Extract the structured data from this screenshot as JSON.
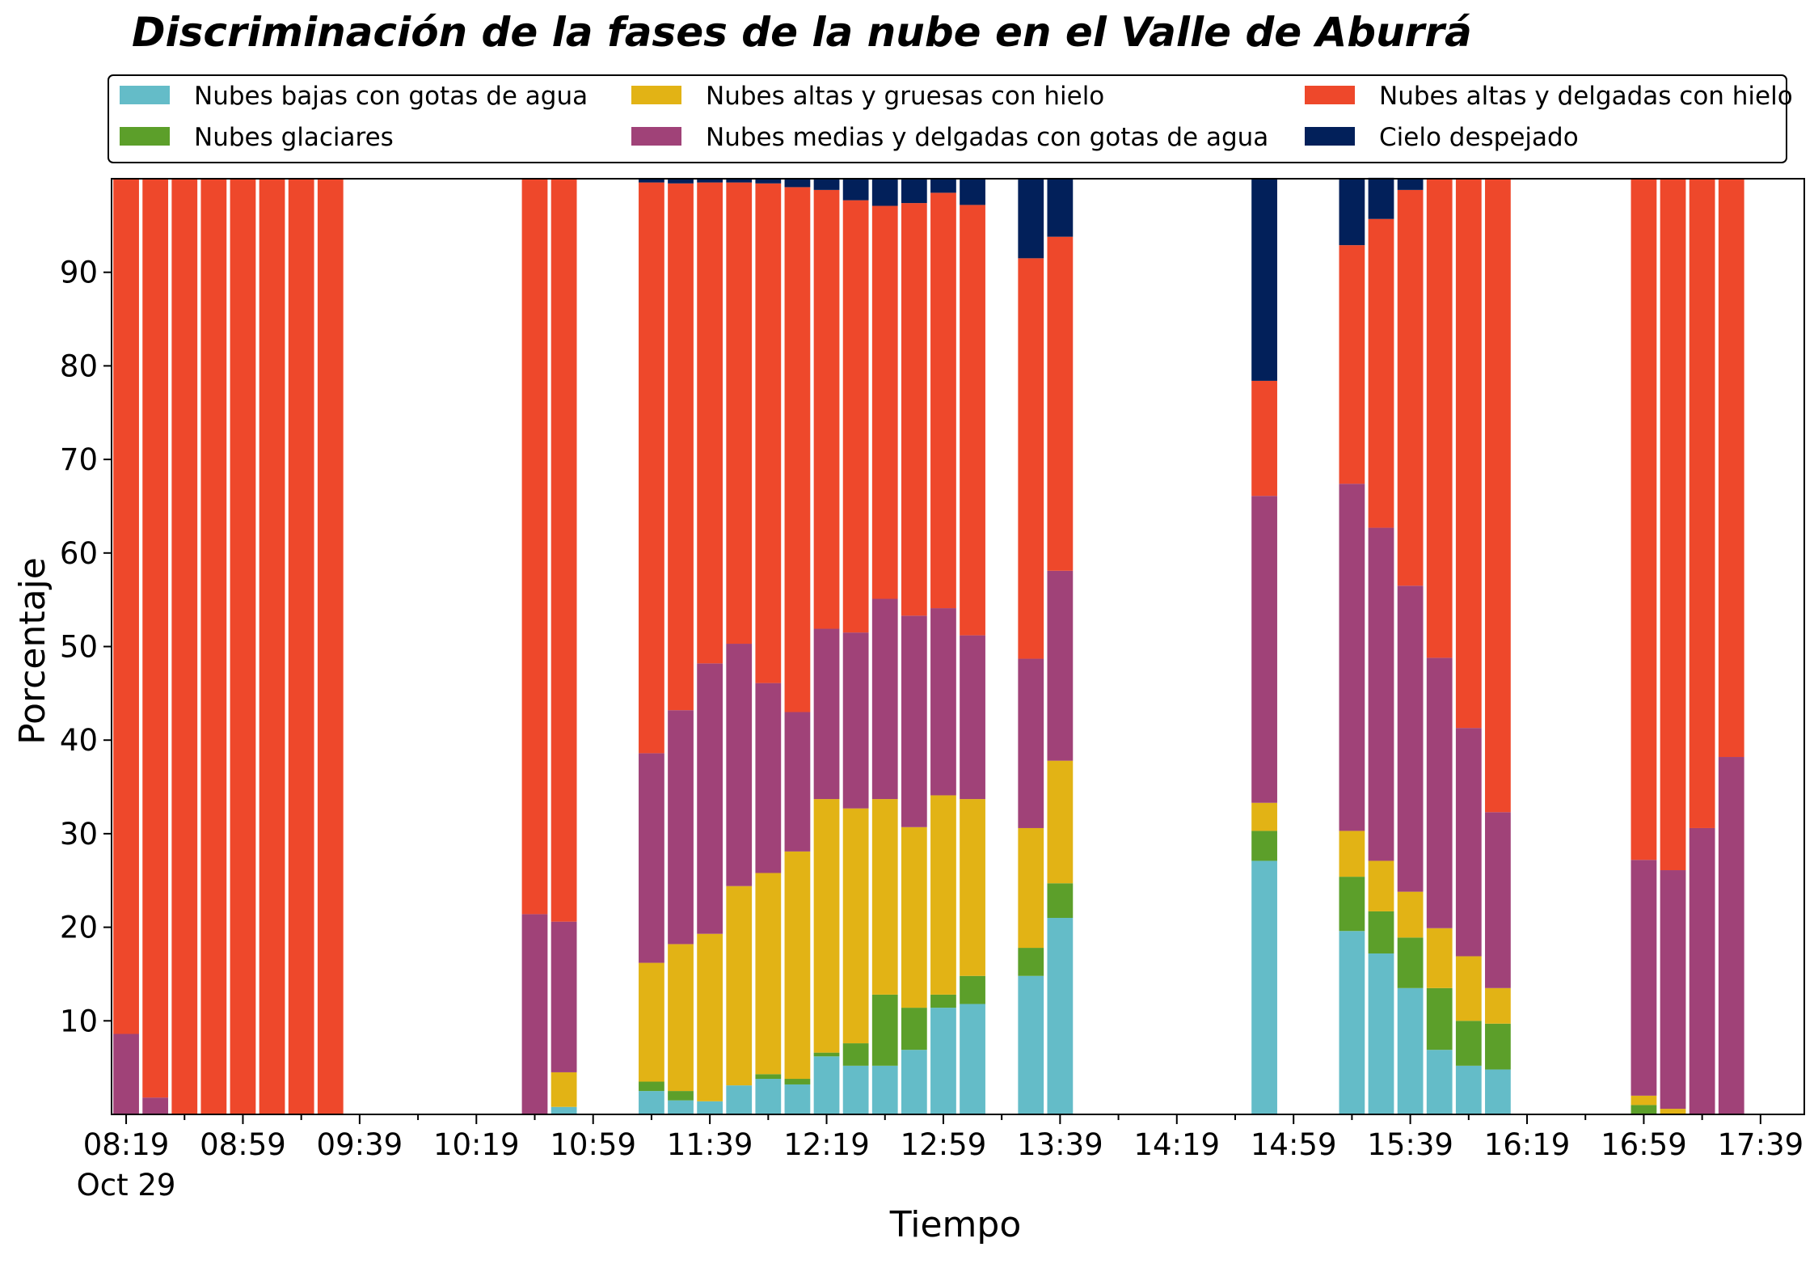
{
  "chart_data": {
    "type": "bar",
    "stacked": true,
    "title": "Discriminación de la fases de la nube en el Valle de Aburrá",
    "xlabel": "Tiempo",
    "ylabel": "Porcentaje",
    "ylim": [
      0,
      100
    ],
    "yticks": [
      10,
      20,
      30,
      40,
      50,
      60,
      70,
      80,
      90
    ],
    "legend_position": "top",
    "grid": false,
    "x_tick_labels": [
      "08:19",
      "08:59",
      "09:39",
      "10:19",
      "10:59",
      "11:39",
      "12:19",
      "12:59",
      "13:39",
      "14:19",
      "14:59",
      "15:39",
      "16:19",
      "16:59",
      "17:39"
    ],
    "x_tick_sublabel": "Oct 29",
    "categories": [
      "08:19",
      "08:29",
      "08:39",
      "08:49",
      "08:59",
      "09:09",
      "09:19",
      "09:29",
      "09:39",
      "09:49",
      "09:59",
      "10:09",
      "10:19",
      "10:29",
      "10:39",
      "10:49",
      "10:59",
      "11:09",
      "11:19",
      "11:29",
      "11:39",
      "11:49",
      "11:59",
      "12:09",
      "12:19",
      "12:29",
      "12:39",
      "12:49",
      "12:59",
      "13:09",
      "13:19",
      "13:29",
      "13:39",
      "13:49",
      "13:59",
      "14:09",
      "14:19",
      "14:29",
      "14:39",
      "14:49",
      "14:59",
      "15:09",
      "15:19",
      "15:29",
      "15:39",
      "15:49",
      "15:59",
      "16:09",
      "16:19",
      "16:29",
      "16:39",
      "16:49",
      "16:59",
      "17:09",
      "17:19",
      "17:29",
      "17:39",
      "17:49"
    ],
    "series": [
      {
        "name": "Nubes bajas con gotas de agua",
        "color": "#64bcc8",
        "values": [
          0,
          0,
          0,
          0,
          0,
          0,
          0,
          0,
          0,
          0,
          0,
          0,
          0,
          0,
          0,
          0.8,
          0,
          0,
          2.5,
          1.5,
          1.4,
          3.1,
          3.8,
          3.2,
          6.2,
          5.2,
          5.2,
          6.9,
          11.4,
          11.8,
          0,
          14.8,
          21.0,
          0,
          0,
          0,
          0,
          0,
          0,
          27.1,
          0,
          0,
          19.6,
          17.2,
          13.5,
          6.9,
          5.2,
          4.8,
          0,
          0,
          0,
          0,
          0,
          0,
          0,
          0,
          0,
          0
        ]
      },
      {
        "name": "Nubes glaciares",
        "color": "#5c9f2a",
        "values": [
          0,
          0,
          0,
          0,
          0,
          0,
          0,
          0,
          0,
          0,
          0,
          0,
          0,
          0,
          0,
          0,
          0,
          0,
          1.0,
          1.0,
          0,
          0,
          0.5,
          0.6,
          0.4,
          2.4,
          7.6,
          4.5,
          1.4,
          3.0,
          0,
          3.0,
          3.7,
          0,
          0,
          0,
          0,
          0,
          0,
          3.2,
          0,
          0,
          5.8,
          4.5,
          5.4,
          6.6,
          4.8,
          4.9,
          0,
          0,
          0,
          0,
          1.0,
          0,
          0,
          0,
          0,
          0
        ]
      },
      {
        "name": "Nubes altas y gruesas con hielo",
        "color": "#e2b315",
        "values": [
          0,
          0,
          0,
          0,
          0,
          0,
          0,
          0,
          0,
          0,
          0,
          0,
          0,
          0,
          0,
          3.7,
          0,
          0,
          12.7,
          15.7,
          17.9,
          21.3,
          21.5,
          24.3,
          27.1,
          25.1,
          20.9,
          19.3,
          21.3,
          18.9,
          0,
          12.8,
          13.1,
          0,
          0,
          0,
          0,
          0,
          0,
          3.0,
          0,
          0,
          4.9,
          5.4,
          4.9,
          6.4,
          6.9,
          3.8,
          0,
          0,
          0,
          0,
          1.0,
          0.6,
          0,
          0,
          0,
          0
        ]
      },
      {
        "name": "Nubes medias y delgadas con gotas de agua",
        "color": "#a04278",
        "values": [
          8.6,
          1.8,
          0,
          0,
          0,
          0,
          0,
          0,
          0,
          0,
          0,
          0,
          0,
          0,
          21.4,
          16.1,
          0,
          0,
          22.4,
          25.0,
          28.9,
          25.9,
          20.3,
          14.9,
          18.2,
          18.8,
          21.4,
          22.6,
          20.0,
          17.5,
          0,
          18.1,
          20.3,
          0,
          0,
          0,
          0,
          0,
          0,
          32.8,
          0,
          0,
          37.1,
          35.6,
          32.7,
          28.9,
          24.4,
          18.8,
          0,
          0,
          0,
          0,
          25.2,
          25.5,
          30.6,
          38.2,
          0,
          0
        ]
      },
      {
        "name": "Nubes altas y delgadas con hielo",
        "color": "#ee482b",
        "values": [
          91.4,
          98.2,
          100,
          100,
          100,
          100,
          100,
          100,
          0,
          0,
          0,
          0,
          0,
          0,
          78.6,
          79.4,
          0,
          0,
          61.0,
          56.3,
          51.4,
          49.3,
          53.4,
          56.1,
          46.9,
          46.2,
          42.0,
          44.1,
          44.4,
          46.0,
          0,
          42.8,
          35.7,
          0,
          0,
          0,
          0,
          0,
          0,
          12.3,
          0,
          0,
          25.5,
          33.0,
          42.3,
          51.2,
          58.7,
          67.7,
          0,
          0,
          0,
          0,
          72.8,
          73.9,
          69.4,
          61.8,
          0,
          0
        ]
      },
      {
        "name": "Cielo despejado",
        "color": "#02205a",
        "values": [
          0,
          0,
          0,
          0,
          0,
          0,
          0,
          0,
          0,
          0,
          0,
          0,
          0,
          0,
          0,
          0,
          0,
          0,
          0.4,
          0.5,
          0.4,
          0.4,
          0.5,
          0.9,
          1.2,
          2.3,
          2.9,
          2.6,
          1.5,
          2.8,
          0,
          8.5,
          6.2,
          0,
          0,
          0,
          0,
          0,
          0,
          21.6,
          0,
          0,
          7.1,
          4.4,
          1.2,
          0,
          0,
          0,
          0,
          0,
          0,
          0,
          0,
          0,
          0,
          0,
          0,
          0
        ]
      }
    ]
  }
}
